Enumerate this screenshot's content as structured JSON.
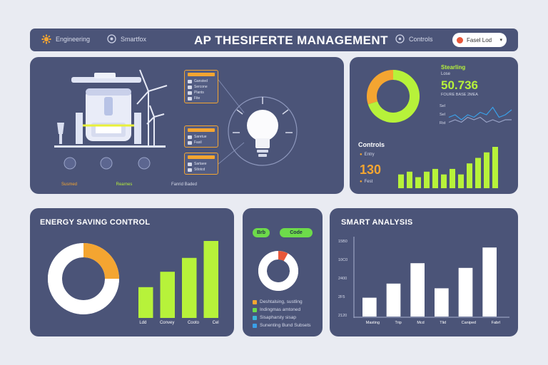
{
  "header": {
    "nav_left_1": "Engineering",
    "nav_left_2": "Smartfox",
    "title": "AP THESIFERTE MANAGEMENT",
    "nav_right": "Controls",
    "select_label": "Fasel Lod"
  },
  "hero": {
    "icon_labels": [
      "Susmed",
      "Rearnes",
      "Fanrid Baded"
    ],
    "mini_panels": [
      {
        "rows": [
          "Gansted",
          "Sercone",
          "Plants",
          "Fite"
        ]
      },
      {
        "rows": [
          "Saretue",
          "Fasil"
        ]
      },
      {
        "rows": [
          "Sartaee",
          "Stlotcd"
        ]
      }
    ]
  },
  "status_card": {
    "label": "Stearling",
    "sublabel": "Lose",
    "value": "50.736",
    "value_sub": "FOURE BASE 2MEA",
    "line_labels": [
      "Sel",
      "Sel",
      "Rst"
    ],
    "controls_title": "Controls",
    "controls_item": "Entry",
    "controls_value": "130",
    "controls_item_2": "Fest",
    "donut_colors": {
      "a": "#b7f23a",
      "b": "#f4a531"
    }
  },
  "energy_card": {
    "title": "ENERGY SAVING CONTROL",
    "bar_labels": [
      "Ldd",
      "Convey",
      "Cooto",
      "Cel"
    ]
  },
  "middle_card": {
    "pill_1": "Brb",
    "pill_2": "Code",
    "legend": [
      "Deshtalsing, sustling",
      "Indingmas amtoned",
      "Sisapharsty sisap",
      "Sunenting Bund Subsets"
    ],
    "legend_colors": [
      "#f4a531",
      "#6ddb4a",
      "#39b6d8",
      "#3aa0e8"
    ]
  },
  "smart_card": {
    "title": "SMART ANALYSIS",
    "y_ticks": [
      "15B0",
      "10C0",
      "2400",
      "2F5",
      "2120"
    ],
    "bar_labels": [
      "Masting",
      "Trip",
      "Mcd",
      "Tlid",
      "Caniped",
      "Fabrl"
    ]
  },
  "chart_data": [
    {
      "type": "pie",
      "title": "",
      "values": [
        70,
        30
      ],
      "colors": [
        "#b7f23a",
        "#f4a531"
      ]
    },
    {
      "type": "line",
      "series": [
        {
          "values": [
            5,
            6,
            4,
            6,
            5,
            7,
            6,
            9,
            5,
            6,
            8
          ]
        },
        {
          "values": [
            3,
            4,
            3,
            5,
            4,
            5,
            3,
            4,
            3,
            4,
            4
          ]
        }
      ]
    },
    {
      "type": "bar",
      "values": [
        5,
        6,
        4,
        6,
        7,
        5,
        7,
        5,
        9,
        11,
        13,
        15
      ]
    },
    {
      "type": "pie",
      "values": [
        25,
        75
      ],
      "colors": [
        "#f4a531",
        "#ffffff"
      ]
    },
    {
      "type": "bar",
      "categories": [
        "Ldd",
        "Convey",
        "Cooto",
        "Cel"
      ],
      "values": [
        40,
        60,
        78,
        100
      ]
    },
    {
      "type": "pie",
      "values": [
        8,
        92
      ],
      "colors": [
        "#e8573a",
        "#ffffff"
      ]
    },
    {
      "type": "bar",
      "categories": [
        "Masting",
        "Trip",
        "Mcd",
        "Tlid",
        "Caniped",
        "Fabrl"
      ],
      "values": [
        24,
        42,
        68,
        36,
        62,
        88
      ]
    }
  ]
}
